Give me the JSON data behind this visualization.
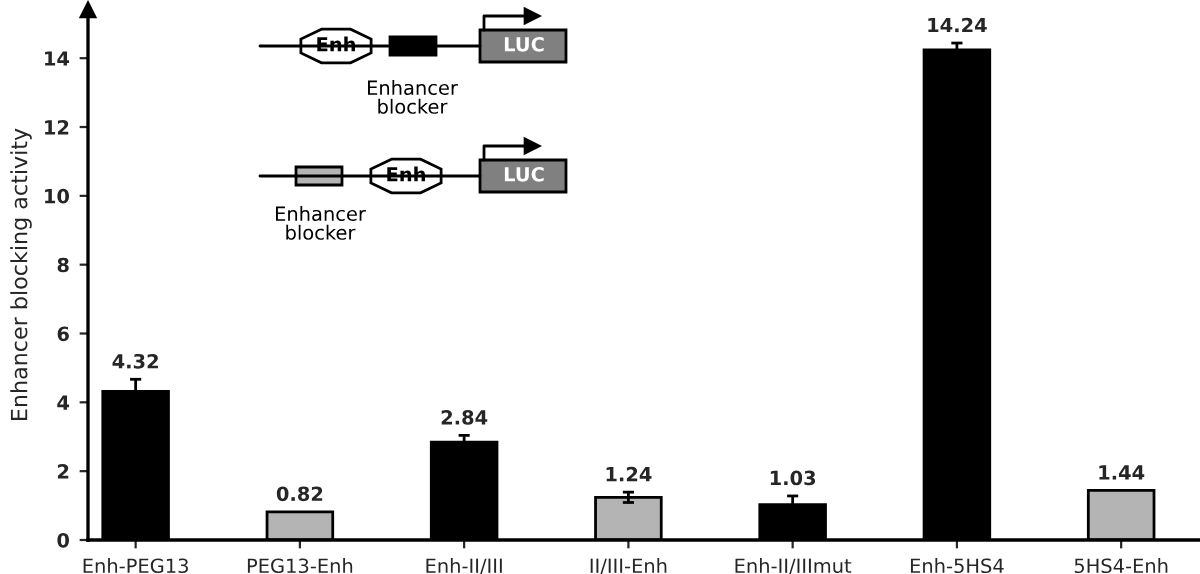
{
  "chart_data": {
    "type": "bar",
    "ylabel": "Enhancer blocking activity",
    "categories": [
      "Enh-PEG13",
      "PEG13-Enh",
      "Enh-II/III",
      "II/III-Enh",
      "Enh-II/IIImut",
      "Enh-5HS4",
      "5HS4-Enh"
    ],
    "values": [
      4.32,
      0.82,
      2.84,
      1.24,
      1.03,
      14.24,
      1.44
    ],
    "colors": [
      "#000000",
      "#b4b4b4",
      "#000000",
      "#b4b4b4",
      "#000000",
      "#000000",
      "#b4b4b4"
    ],
    "errors": [
      0.35,
      null,
      0.2,
      0.15,
      0.25,
      0.2,
      null
    ],
    "data_labels": true,
    "grid": false,
    "ylim": [
      0,
      15.4
    ],
    "yticks": [
      0,
      2,
      4,
      6,
      8,
      10,
      12,
      14
    ],
    "annotations": [
      "Enh",
      "Enhancer\nblocker",
      "LUC",
      "Enhancer\nblocker",
      "Enh",
      "LUC"
    ]
  }
}
